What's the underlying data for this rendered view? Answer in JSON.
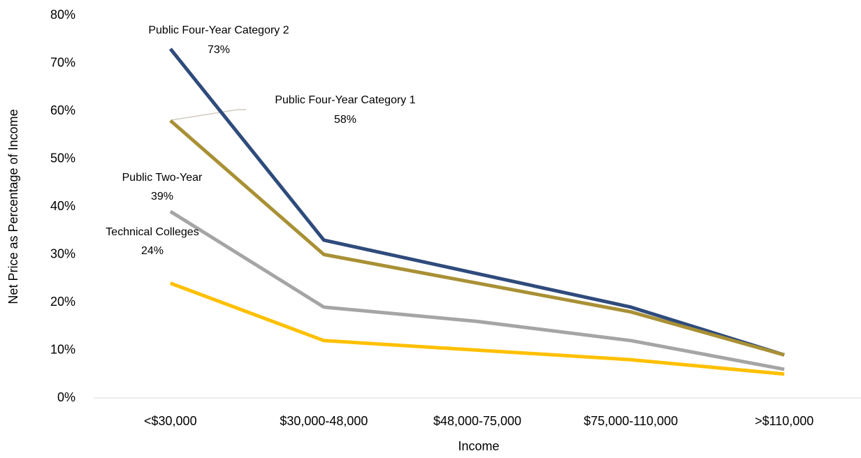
{
  "chart_data": {
    "type": "line",
    "x_label": "Income",
    "y_label": "Net Price as Percentage of Income",
    "categories": [
      "<$30,000",
      "$30,000-48,000",
      "$48,000-75,000",
      "$75,000-110,000",
      ">$110,000"
    ],
    "ylim": [
      0,
      80
    ],
    "yticks": [
      {
        "value": 0,
        "label": "0%"
      },
      {
        "value": 10,
        "label": "10%"
      },
      {
        "value": 20,
        "label": "20%"
      },
      {
        "value": 30,
        "label": "30%"
      },
      {
        "value": 40,
        "label": "40%"
      },
      {
        "value": 50,
        "label": "50%"
      },
      {
        "value": 60,
        "label": "60%"
      },
      {
        "value": 70,
        "label": "70%"
      },
      {
        "value": 80,
        "label": "80%"
      }
    ],
    "series": [
      {
        "name": "Public Four-Year Category 2",
        "color": "#2f4b7c",
        "values": [
          73,
          33,
          26,
          19,
          9
        ],
        "value_labels": [
          "73%",
          null,
          null,
          null,
          null
        ]
      },
      {
        "name": "Public Four-Year Category 1",
        "color": "#a89035",
        "values": [
          58,
          30,
          24,
          18,
          9
        ],
        "value_labels": [
          "58%",
          null,
          null,
          null,
          null
        ]
      },
      {
        "name": "Public Two-Year",
        "color": "#a5a5a5",
        "values": [
          39,
          19,
          16,
          12,
          6
        ],
        "value_labels": [
          "39%",
          null,
          null,
          null,
          null
        ]
      },
      {
        "name": "Technical Colleges",
        "color": "#ffc000",
        "values": [
          24,
          12,
          10,
          8,
          5
        ],
        "value_labels": [
          "24%",
          null,
          null,
          null,
          null
        ]
      }
    ]
  }
}
